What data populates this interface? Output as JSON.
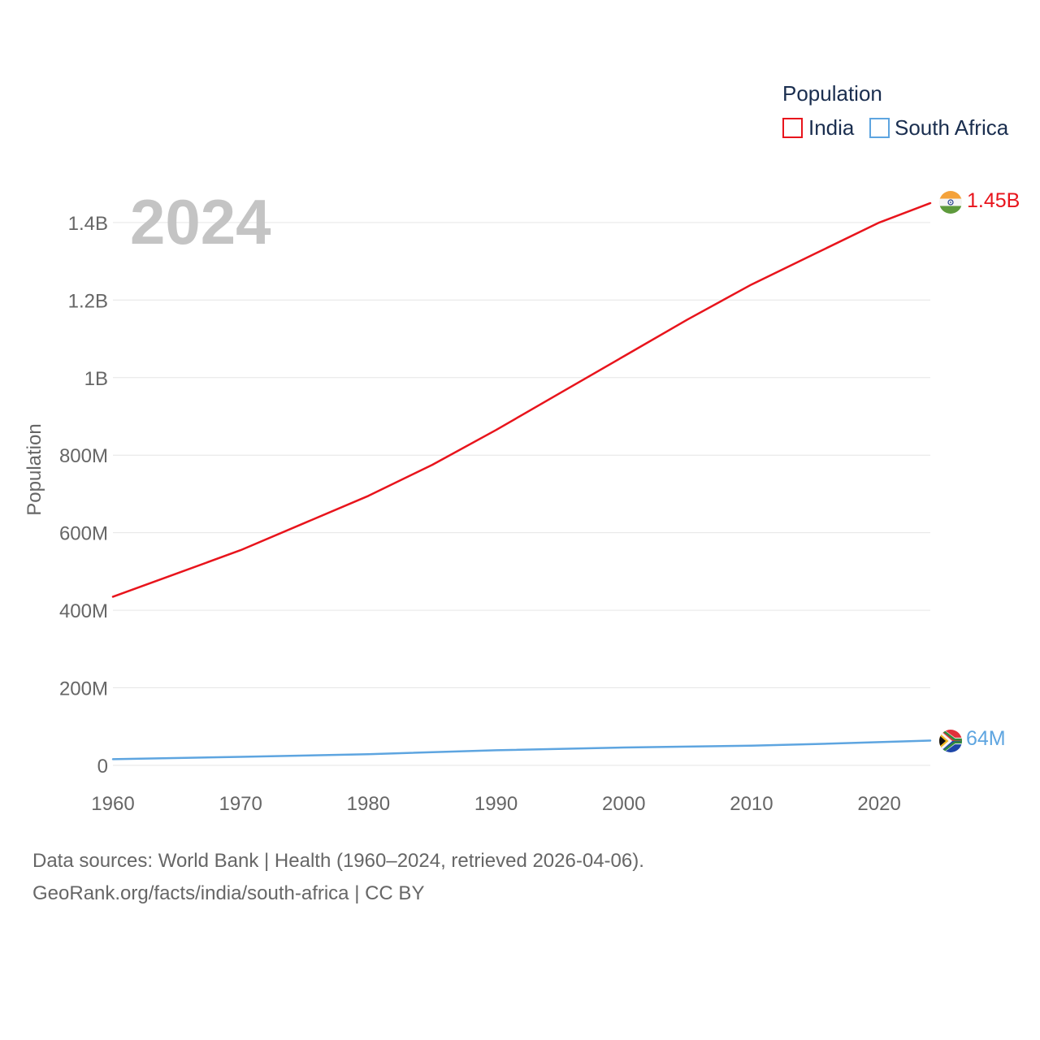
{
  "chart_data": {
    "type": "line",
    "ylabel": "Population",
    "ylim": [
      0,
      1450000000
    ],
    "xlim": [
      1960,
      2024
    ],
    "x_ticks": [
      1960,
      1970,
      1980,
      1990,
      2000,
      2010,
      2020
    ],
    "x_tick_labels": [
      "1960",
      "1970",
      "1980",
      "1990",
      "2000",
      "2010",
      "2020"
    ],
    "y_ticks": [
      0,
      200000000,
      400000000,
      600000000,
      800000000,
      1000000000,
      1200000000,
      1400000000
    ],
    "y_tick_labels": [
      "0",
      "200M",
      "400M",
      "600M",
      "800M",
      "1B",
      "1.2B",
      "1.4B"
    ],
    "grid": true,
    "year_label": "2024",
    "legend": {
      "title": "Population",
      "position": "top-right",
      "entries": [
        "India",
        "South Africa"
      ]
    },
    "series": [
      {
        "name": "India",
        "color": "#e8141c",
        "end_label": "1.45B",
        "flag": "india-flag",
        "x": [
          1960,
          1965,
          1970,
          1975,
          1980,
          1985,
          1990,
          1995,
          2000,
          2005,
          2010,
          2015,
          2020,
          2024
        ],
        "y": [
          435000000,
          495000000,
          555000000,
          625000000,
          695000000,
          775000000,
          865000000,
          960000000,
          1055000000,
          1150000000,
          1240000000,
          1320000000,
          1400000000,
          1450000000
        ]
      },
      {
        "name": "South Africa",
        "color": "#5ea5e0",
        "end_label": "64M",
        "flag": "south-africa-flag",
        "x": [
          1960,
          1970,
          1980,
          1990,
          2000,
          2010,
          2015,
          2020,
          2024
        ],
        "y": [
          16000000,
          22000000,
          29000000,
          39000000,
          46000000,
          51000000,
          55000000,
          60000000,
          64000000
        ]
      }
    ]
  },
  "footer": {
    "line1": "Data sources: World Bank | Health (1960–2024, retrieved 2026-04-06).",
    "line2": "GeoRank.org/facts/india/south-africa | CC BY"
  }
}
